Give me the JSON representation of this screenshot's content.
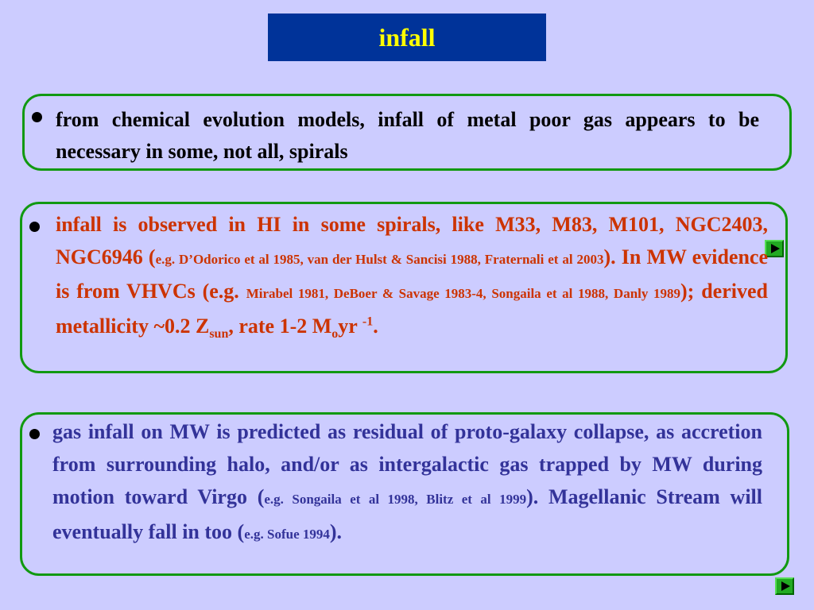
{
  "title": "infall",
  "panel1": {
    "text": "from chemical evolution models, infall of metal poor gas appears to be necessary in some, not all, spirals"
  },
  "panel2": {
    "t1": "infall is observed in HI in some spirals, like M33, M83, M101, NGC2403, NGC6946 (",
    "r1": "e.g. D’Odorico et al 1985, van der Hulst & Sancisi 1988, Fraternali et al 2003",
    "t2": "). In MW evidence is from VHVCs (e.g. ",
    "r2": "Mirabel 1981, DeBoer & Savage 1983-4, Songaila et al 1988, Danly 1989",
    "t3": "); derived metallicity ~0.2 Z",
    "sub1": "sun",
    "t4": ", rate 1-2 M",
    "sub2": "o",
    "t5": "yr ",
    "sup1": "-1",
    "t6": "."
  },
  "panel3": {
    "t1": "gas infall on MW is predicted as residual of proto-galaxy collapse, as accretion from surrounding halo, and/or as intergalactic gas trapped by MW during motion toward Virgo (",
    "r1": "e.g. Songaila et al 1998, Blitz et al 1999",
    "t2": "). Magellanic Stream will eventually fall in too (",
    "r2": "e.g. Sofue 1994",
    "t3": ")."
  },
  "icons": {
    "nav": "play-triangle-icon"
  },
  "colors": {
    "background": "#ccccff",
    "title_bg": "#003399",
    "title_text": "#ffff00",
    "panel_border": "#119911",
    "panel1_text": "#000000",
    "panel2_text": "#cc3300",
    "panel3_text": "#333399"
  }
}
